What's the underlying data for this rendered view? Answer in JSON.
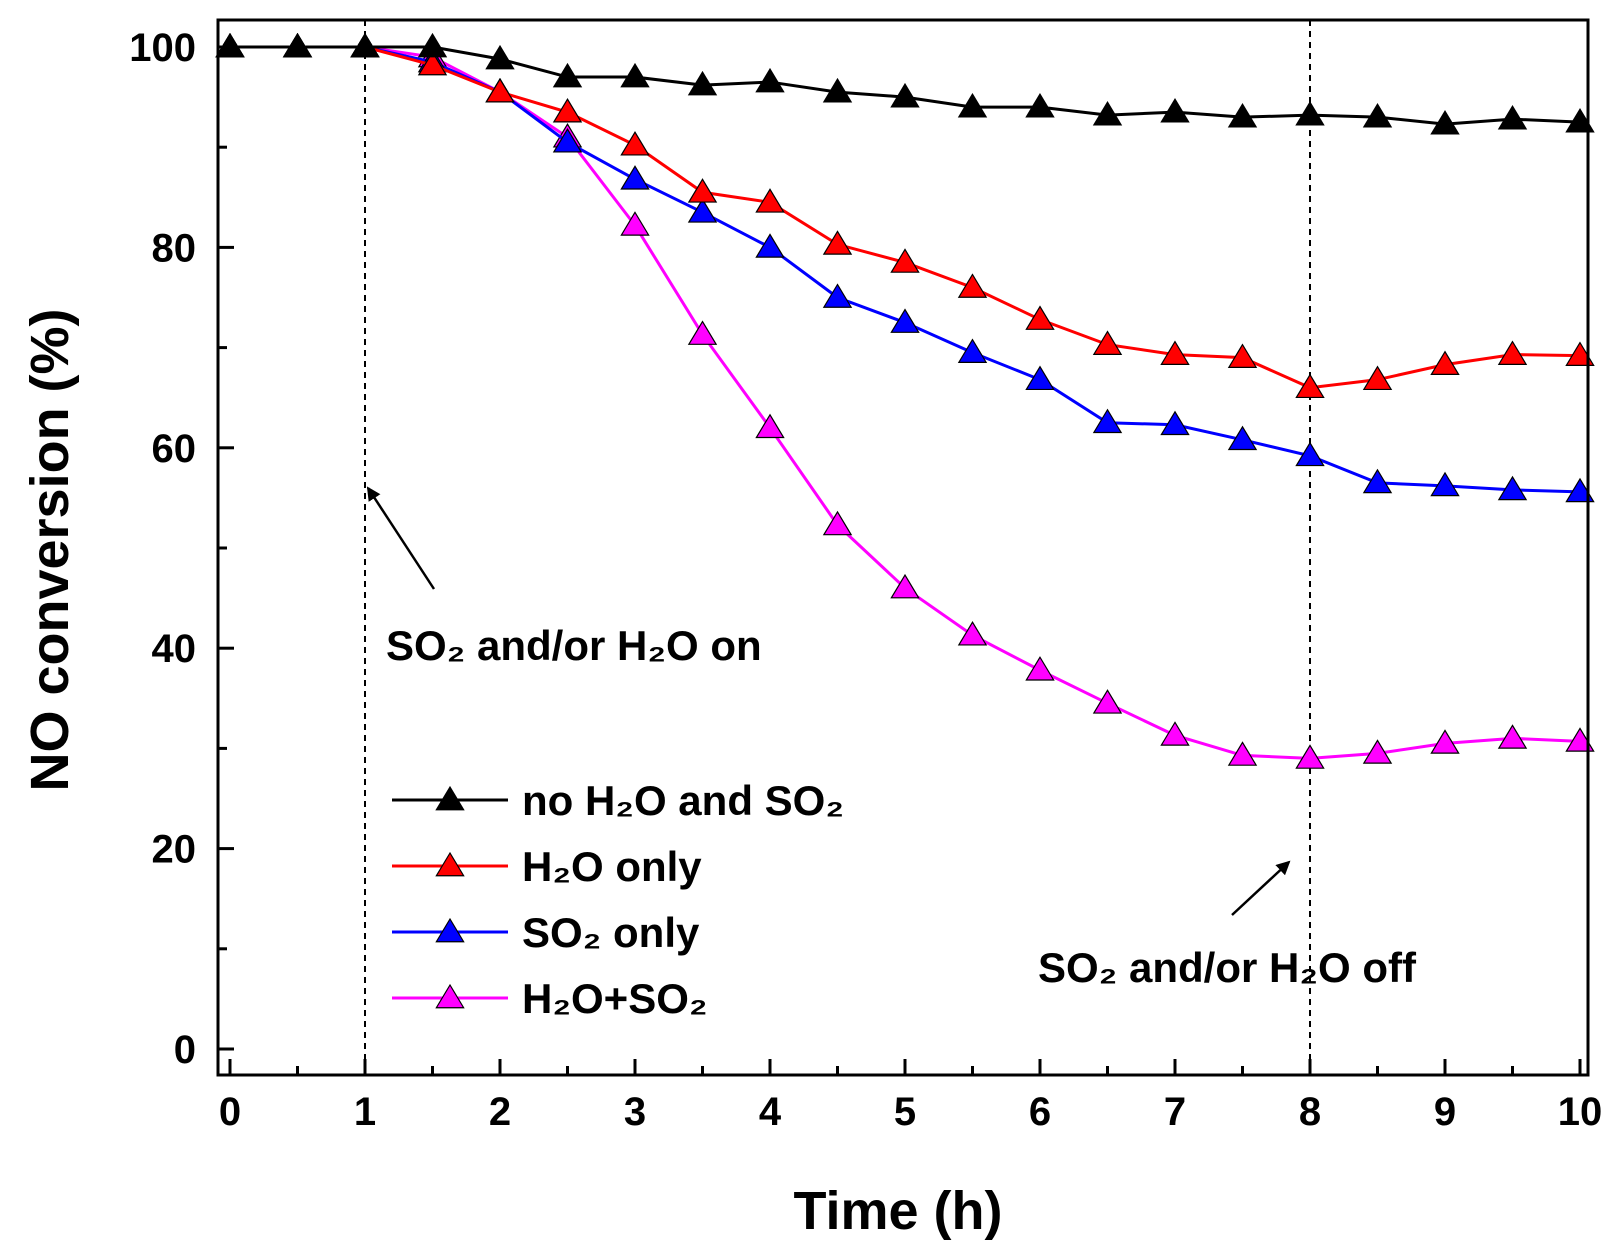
{
  "chart_data": {
    "type": "line",
    "title": "",
    "xlabel": "Time (h)",
    "ylabel": "NO conversion (%)",
    "xlim": [
      0,
      10
    ],
    "ylim": [
      0,
      100
    ],
    "x_ticks": [
      "0",
      "1",
      "2",
      "3",
      "4",
      "5",
      "6",
      "7",
      "8",
      "9",
      "10"
    ],
    "y_ticks": [
      "0",
      "20",
      "40",
      "60",
      "80",
      "100"
    ],
    "marker": "triangle",
    "legend_position": "lower-left",
    "x": [
      0,
      0.5,
      1,
      1.5,
      2,
      2.5,
      3,
      3.5,
      4,
      4.5,
      5,
      5.5,
      6,
      6.5,
      7,
      7.5,
      8,
      8.5,
      9,
      9.5,
      10
    ],
    "series": [
      {
        "name": "no H₂O and SO₂",
        "color": "#000000",
        "values": [
          100,
          100,
          100,
          100,
          98.8,
          97,
          97,
          96.2,
          96.5,
          95.5,
          95,
          94,
          94,
          93.2,
          93.5,
          93,
          93.2,
          93,
          92.3,
          92.8,
          92.5
        ]
      },
      {
        "name": "H₂O only",
        "color": "#ff0000",
        "values": [
          100,
          100,
          100,
          98.2,
          95.5,
          93.5,
          90.2,
          85.5,
          84.5,
          80.3,
          78.5,
          76,
          72.8,
          70.3,
          69.3,
          69,
          66,
          66.8,
          68.3,
          69.3,
          69.2
        ]
      },
      {
        "name": "SO₂ only",
        "color": "#0000ff",
        "values": [
          100,
          100,
          100,
          98.5,
          95.5,
          90.5,
          86.8,
          83.5,
          80,
          75,
          72.5,
          69.5,
          66.8,
          62.5,
          62.3,
          60.8,
          59.2,
          56.5,
          56.2,
          55.8,
          55.6
        ]
      },
      {
        "name": "H₂O+SO₂",
        "color": "#ff00ff",
        "values": [
          100,
          100,
          100,
          99,
          95.5,
          91,
          82.2,
          71.3,
          62,
          52.3,
          46,
          41.3,
          37.8,
          34.5,
          31.3,
          29.3,
          29,
          29.5,
          30.5,
          31,
          30.7
        ]
      }
    ],
    "annotations": [
      {
        "text": "SO₂ and/or H₂O on",
        "x_line": 1
      },
      {
        "text": "SO₂ and/or H₂O off",
        "x_line": 8
      }
    ]
  }
}
